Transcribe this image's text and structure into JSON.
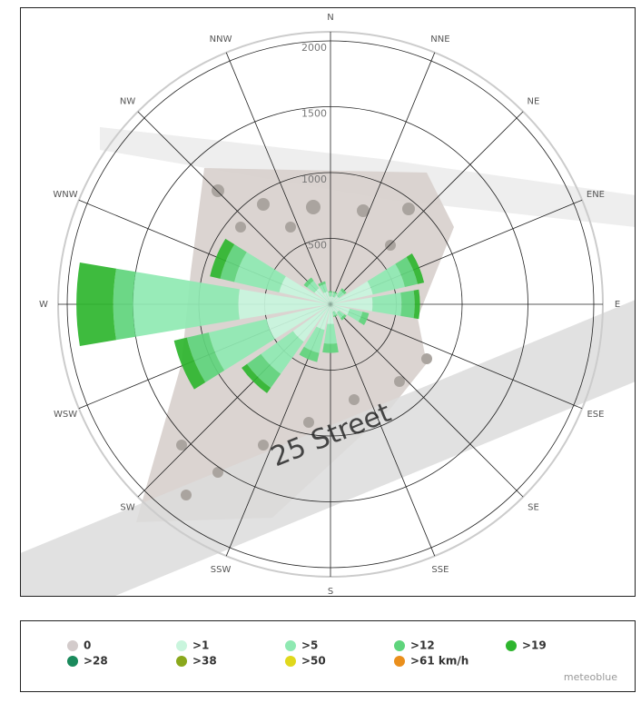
{
  "chart_data": {
    "type": "windrose",
    "categories": [
      "N",
      "NNE",
      "NE",
      "ENE",
      "E",
      "ESE",
      "SE",
      "SSE",
      "S",
      "SSW",
      "SW",
      "WSW",
      "W",
      "WNW",
      "NW",
      "NNW"
    ],
    "ylim": [
      0,
      2000
    ],
    "yticks": [
      500,
      1000,
      1500,
      2000
    ],
    "map_label": "25 Street",
    "attribution": "meteoblue",
    "series": [
      {
        "name": "0",
        "color": "#d3cbcb",
        "values": [
          0,
          0,
          0,
          0,
          0,
          0,
          0,
          0,
          0,
          0,
          0,
          0,
          0,
          0,
          0,
          0
        ]
      },
      {
        "name": ">1",
        "color": "#c9f5dd",
        "values": [
          60,
          60,
          80,
          330,
          320,
          150,
          80,
          60,
          150,
          200,
          350,
          500,
          700,
          400,
          150,
          100
        ]
      },
      {
        "name": ">5",
        "color": "#8fe9b2",
        "values": [
          30,
          30,
          50,
          250,
          220,
          100,
          50,
          30,
          150,
          180,
          300,
          450,
          800,
          350,
          70,
          60
        ]
      },
      {
        "name": ">12",
        "color": "#5fd47c",
        "values": [
          10,
          10,
          20,
          100,
          100,
          50,
          20,
          10,
          70,
          70,
          130,
          170,
          150,
          110,
          30,
          20
        ]
      },
      {
        "name": ">19",
        "color": "#2eb52e",
        "values": [
          0,
          0,
          0,
          50,
          40,
          0,
          0,
          0,
          0,
          0,
          50,
          100,
          280,
          80,
          0,
          0
        ]
      },
      {
        "name": ">28",
        "color": "#1a8a5c",
        "values": [
          0,
          0,
          0,
          0,
          0,
          0,
          0,
          0,
          0,
          0,
          0,
          0,
          0,
          0,
          0,
          0
        ]
      },
      {
        "name": ">38",
        "color": "#8aa81c",
        "values": [
          0,
          0,
          0,
          0,
          0,
          0,
          0,
          0,
          0,
          0,
          0,
          0,
          0,
          0,
          0,
          0
        ]
      },
      {
        "name": ">50",
        "color": "#e0d81c",
        "values": [
          0,
          0,
          0,
          0,
          0,
          0,
          0,
          0,
          0,
          0,
          0,
          0,
          0,
          0,
          0,
          0
        ]
      },
      {
        "name": ">61 km/h",
        "color": "#ea8f1c",
        "values": [
          0,
          0,
          0,
          0,
          0,
          0,
          0,
          0,
          0,
          0,
          0,
          0,
          0,
          0,
          0,
          0
        ]
      }
    ]
  }
}
